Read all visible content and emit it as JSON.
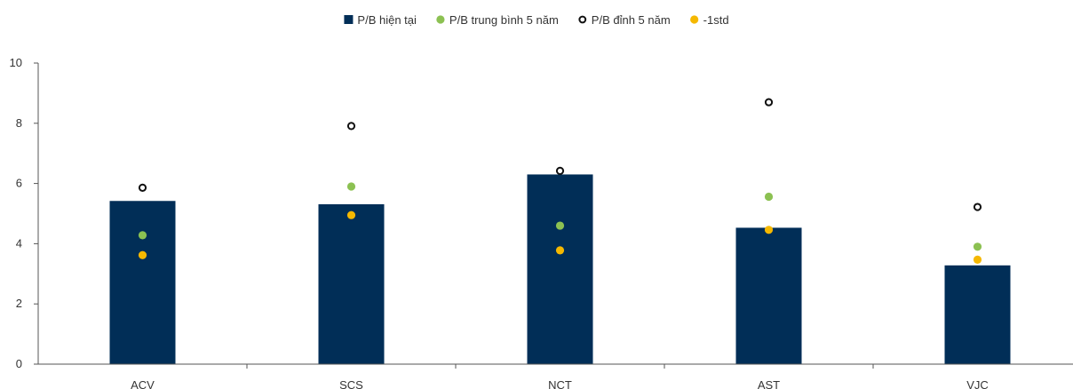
{
  "chart_data": {
    "type": "bar",
    "categories": [
      "ACV",
      "SCS",
      "NCT",
      "AST",
      "VJC"
    ],
    "series": [
      {
        "name": "P/B hiện tại",
        "kind": "bar",
        "marker": "square",
        "color": "#012e57",
        "values": [
          5.42,
          5.31,
          6.3,
          4.53,
          3.28
        ]
      },
      {
        "name": "P/B trung bình 5 năm",
        "kind": "point",
        "marker": "filled-circle",
        "color": "#8cc152",
        "values": [
          4.28,
          5.9,
          4.6,
          5.56,
          3.9
        ]
      },
      {
        "name": "P/B đỉnh 5 năm",
        "kind": "point",
        "marker": "hollow-circle",
        "color": "#111111",
        "values": [
          5.86,
          7.91,
          6.42,
          8.7,
          5.22
        ]
      },
      {
        "name": "-1std",
        "kind": "point",
        "marker": "filled-circle",
        "color": "#f5b800",
        "values": [
          3.62,
          4.95,
          3.78,
          4.46,
          3.47
        ]
      }
    ],
    "y_ticks": [
      "0",
      "2",
      "4",
      "6",
      "8",
      "10"
    ],
    "ylim": [
      0,
      10
    ],
    "title": "",
    "xlabel": "",
    "ylabel": "",
    "grid": false,
    "legend_position": "top-center"
  }
}
